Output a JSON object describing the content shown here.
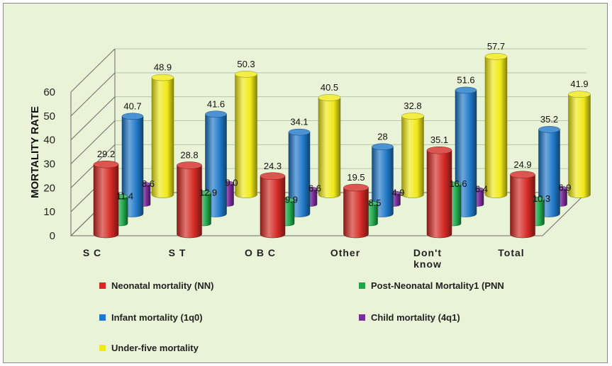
{
  "chart_data": {
    "type": "bar",
    "style": "3d-cylinder",
    "title": "",
    "ylabel": "MORTALITY RATE",
    "xlabel": "",
    "ylim": [
      0,
      60
    ],
    "yticks": [
      0,
      10,
      20,
      30,
      40,
      50,
      60
    ],
    "grid": true,
    "legend_position": "bottom",
    "categories": [
      "S C",
      "S T",
      "O B C",
      "Other",
      "Don't know",
      "Total"
    ],
    "series": [
      {
        "name": "Neonatal mortality (NN)",
        "color": "#d42a24",
        "values": [
          29.2,
          28.8,
          24.3,
          19.5,
          35.1,
          24.9
        ]
      },
      {
        "name": "Post-Neonatal Mortality1 (PNN",
        "color": "#1ea84a",
        "values": [
          11.4,
          12.9,
          9.9,
          8.5,
          16.6,
          10.3
        ]
      },
      {
        "name": "Infant mortality (1q0)",
        "color": "#1f78c8",
        "values": [
          40.7,
          41.6,
          34.1,
          28,
          51.6,
          35.2
        ]
      },
      {
        "name": "Child mortality (4q1)",
        "color": "#7a2e9a",
        "values": [
          8.6,
          9.0,
          6.6,
          4.9,
          6.4,
          6.9
        ]
      },
      {
        "name": "Under-five mortality",
        "color": "#f0ea18",
        "values": [
          48.9,
          50.3,
          40.5,
          32.8,
          57.7,
          41.9
        ]
      }
    ],
    "data_labels": [
      [
        "29.2",
        "28.8",
        "24.3",
        "19.5",
        "35.1",
        "24.9"
      ],
      [
        "11.4",
        "12.9",
        "9.9",
        "8.5",
        "16.6",
        "10.3"
      ],
      [
        "40.7",
        "41.6",
        "34.1",
        "28",
        "51.6",
        "35.2"
      ],
      [
        "8.6",
        "9.0",
        "6.6",
        "4.9",
        "6.4",
        "6.9"
      ],
      [
        "48.9",
        "50.3",
        "40.5",
        "32.8",
        "57.7",
        "41.9"
      ]
    ]
  }
}
